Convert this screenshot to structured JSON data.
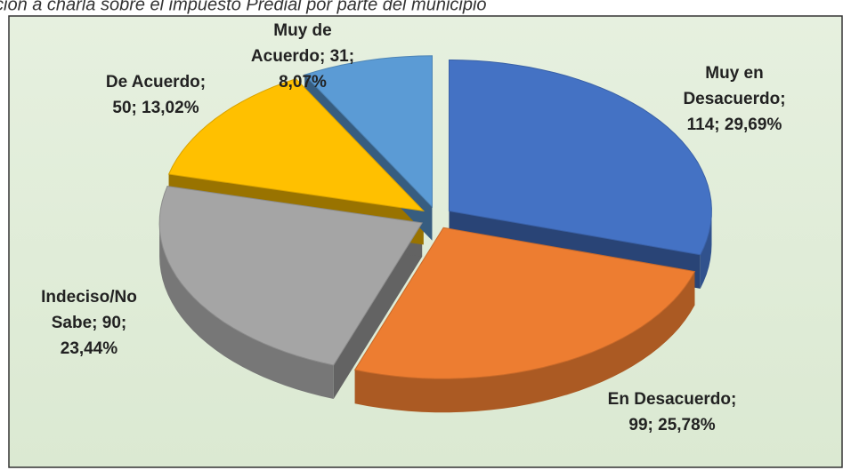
{
  "chart_data": {
    "type": "pie3d",
    "title": "ción a charla sobre el impuesto Predial por parte del municipio",
    "categories": [
      "Muy en Desacuerdo",
      "En Desacuerdo",
      "Indeciso/No Sabe",
      "De Acuerdo",
      "Muy de Acuerdo"
    ],
    "values": [
      114,
      99,
      90,
      50,
      31
    ],
    "value_labels": [
      "Muy en Desacuerdo; 114; 29,69%",
      "En Desacuerdo; 99; 25,78%",
      "Indeciso/No Sabe; 90; 23,44%",
      "De Acuerdo; 50; 13,02%",
      "Muy de Acuerdo; 31; 8,07%"
    ],
    "colors": [
      "#4472c4",
      "#ed7d31",
      "#a5a5a5",
      "#ffc000",
      "#5b9bd5"
    ]
  }
}
